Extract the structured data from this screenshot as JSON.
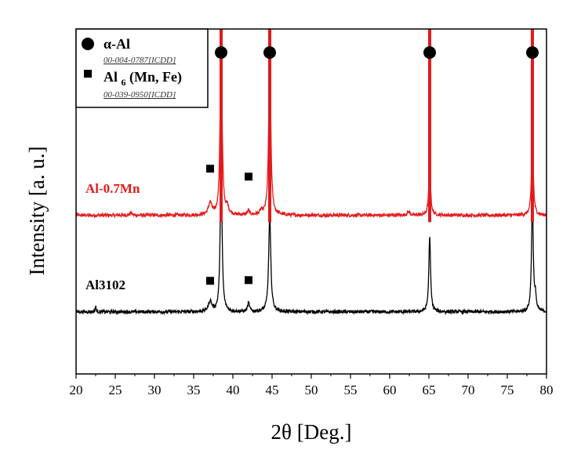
{
  "chart_data": {
    "type": "line",
    "xlabel": "2θ [Deg.]",
    "ylabel": "Intensity [a. u.]",
    "xlim": [
      20,
      80
    ],
    "ylim": [
      0,
      100
    ],
    "xticks": [
      20,
      25,
      30,
      35,
      40,
      45,
      50,
      55,
      60,
      65,
      70,
      75,
      80
    ],
    "grid": false,
    "legend_position": "top-left",
    "legend": [
      {
        "marker": "circle",
        "label": "α-Al",
        "reference": "00-004-0787[ICDD]"
      },
      {
        "marker": "square",
        "label_base": "Al",
        "label_sub": "6",
        "label_rest": "(Mn, Fe)",
        "reference": "00-039-0950[ICDD]"
      }
    ],
    "reference_lines": {
      "color": "#e31a1c",
      "x": [
        38.5,
        44.7,
        65.1,
        78.2
      ]
    },
    "circle_markers_x": [
      38.5,
      44.7,
      65.1,
      78.2
    ],
    "square_markers": [
      {
        "x": 37.1,
        "y": 59.5
      },
      {
        "x": 42.0,
        "y": 57.2
      },
      {
        "x": 37.1,
        "y": 27.0
      },
      {
        "x": 42.0,
        "y": 27.2
      }
    ],
    "series": [
      {
        "name": "Al-0.7Mn",
        "color": "#e31a1c",
        "label_x": 21.2,
        "label_y": 52.5,
        "baseline": 46.0,
        "noise": 0.5,
        "features": [
          {
            "x": 27.0,
            "h": 0.8,
            "w": 0.15
          },
          {
            "x": 37.1,
            "h": 3.5,
            "w": 0.25
          },
          {
            "x": 38.5,
            "h": 55.0,
            "w": 0.14
          },
          {
            "x": 39.3,
            "h": 2.0,
            "w": 0.2
          },
          {
            "x": 42.0,
            "h": 1.2,
            "w": 0.15
          },
          {
            "x": 43.6,
            "h": 1.0,
            "w": 0.2
          },
          {
            "x": 44.7,
            "h": 55.0,
            "w": 0.14
          },
          {
            "x": 62.4,
            "h": 1.0,
            "w": 0.2
          },
          {
            "x": 65.1,
            "h": 15.5,
            "w": 0.13
          },
          {
            "x": 78.2,
            "h": 24.0,
            "w": 0.13
          }
        ]
      },
      {
        "name": "Al3102",
        "color": "#000000",
        "label_x": 21.2,
        "label_y": 24.5,
        "baseline": 18.0,
        "noise": 0.5,
        "features": [
          {
            "x": 22.5,
            "h": 1.5,
            "w": 0.08
          },
          {
            "x": 37.1,
            "h": 3.0,
            "w": 0.25
          },
          {
            "x": 38.5,
            "h": 43.0,
            "w": 0.14
          },
          {
            "x": 42.0,
            "h": 2.5,
            "w": 0.15
          },
          {
            "x": 44.7,
            "h": 28.0,
            "w": 0.16
          },
          {
            "x": 65.1,
            "h": 22.0,
            "w": 0.13
          },
          {
            "x": 78.2,
            "h": 33.0,
            "w": 0.13
          },
          {
            "x": 78.6,
            "h": 4.0,
            "w": 0.1
          }
        ]
      }
    ]
  }
}
